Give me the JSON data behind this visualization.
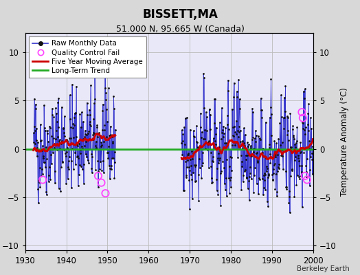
{
  "title": "BISSETT,MA",
  "subtitle": "51.000 N, 95.665 W (Canada)",
  "ylabel": "Temperature Anomaly (°C)",
  "watermark": "Berkeley Earth",
  "xlim": [
    1930,
    2000
  ],
  "ylim": [
    -10.5,
    12
  ],
  "yticks": [
    -10,
    -5,
    0,
    5,
    10
  ],
  "xticks": [
    1930,
    1940,
    1950,
    1960,
    1970,
    1980,
    1990,
    2000
  ],
  "long_term_trend_y": 0.0,
  "bg_color": "#d8d8d8",
  "plot_bg_color": "#e8e8f8",
  "raw_line_color": "#3333cc",
  "raw_dot_color": "#111111",
  "moving_avg_color": "#cc0000",
  "long_trend_color": "#22aa22",
  "qc_fail_color": "#ff44ff",
  "seed": 42,
  "period1_start": 1932,
  "period1_end": 1951,
  "period2_start": 1968,
  "period2_end": 1999,
  "qc_fails_p1": [
    [
      1934.25,
      -3.2
    ],
    [
      1947.75,
      -2.8
    ],
    [
      1948.5,
      -3.5
    ],
    [
      1949.5,
      -4.6
    ]
  ],
  "qc_fails_p2": [
    [
      1997.25,
      3.8
    ],
    [
      1997.5,
      3.2
    ],
    [
      1998.0,
      -2.8
    ],
    [
      1998.5,
      -3.2
    ]
  ]
}
